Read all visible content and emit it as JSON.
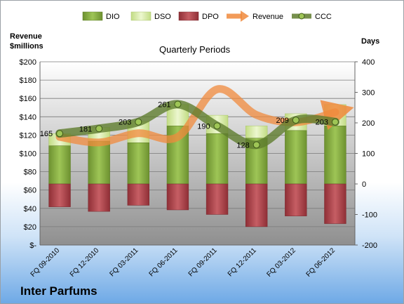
{
  "chart_data": {
    "type": "bar",
    "title": "Quarterly Periods",
    "company": "Inter Parfums",
    "left_axis_label": [
      "Revenue",
      "$millions"
    ],
    "right_axis_label": "Days",
    "left_axis": {
      "min": 0,
      "max": 200,
      "step": 20,
      "ticks": [
        "$-",
        "$20",
        "$40",
        "$60",
        "$80",
        "$100",
        "$120",
        "$140",
        "$160",
        "$180",
        "$200"
      ]
    },
    "right_axis": {
      "min": -200,
      "max": 400,
      "step": 100,
      "ticks": [
        "-200",
        "-100",
        "0",
        "100",
        "200",
        "300",
        "400"
      ]
    },
    "categories": [
      "FQ 09-2010",
      "FQ 12-2010",
      "FQ 03-2011",
      "FQ 06-2011",
      "FQ 09-2011",
      "FQ 12-2011",
      "FQ 03-2012",
      "FQ 06-2012"
    ],
    "legend": [
      "DIO",
      "DSO",
      "DPO",
      "Revenue",
      "CCC"
    ],
    "series": [
      {
        "name": "DIO",
        "axis": "right",
        "values": [
          125,
          140,
          135,
          190,
          165,
          150,
          175,
          190
        ],
        "color": "#7ea23a"
      },
      {
        "name": "DSO",
        "axis": "right",
        "values": [
          40,
          45,
          70,
          70,
          60,
          40,
          55,
          70
        ],
        "color": "#d6ea9c"
      },
      {
        "name": "DPO",
        "axis": "right",
        "values": [
          -75,
          -90,
          -70,
          -85,
          -100,
          -140,
          -105,
          -130
        ],
        "color": "#b44a50"
      },
      {
        "name": "Revenue",
        "axis": "left",
        "values": [
          118,
          112,
          122,
          118,
          170,
          142,
          134,
          145
        ],
        "color": "#f08a3c"
      },
      {
        "name": "CCC",
        "axis": "right",
        "values": [
          165,
          181,
          203,
          261,
          190,
          128,
          209,
          203
        ],
        "color": "#5f7d2e"
      }
    ],
    "ccc_labels": [
      "165",
      "181",
      "203",
      "261",
      "190",
      "128",
      "209",
      "203"
    ],
    "grid": true,
    "legend_position": "top"
  }
}
